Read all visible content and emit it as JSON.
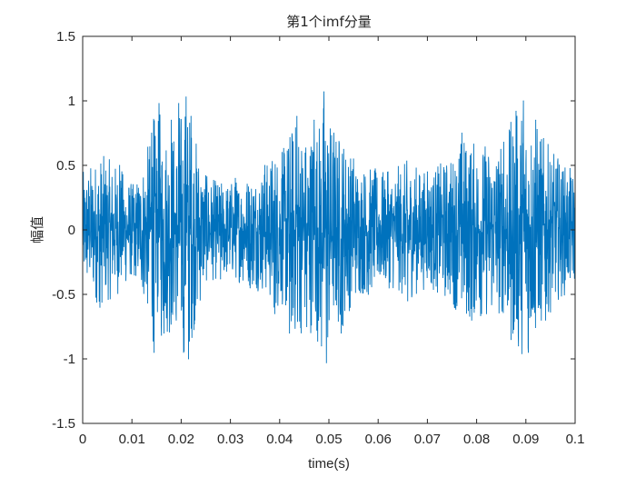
{
  "chart_data": {
    "type": "line",
    "title": "第1个imf分量",
    "xlabel": "time(s)",
    "ylabel": "幅值",
    "xlim": [
      0,
      0.1
    ],
    "ylim": [
      -1.5,
      1.5
    ],
    "xticks": [
      0,
      0.01,
      0.02,
      0.03,
      0.04,
      0.05,
      0.06,
      0.07,
      0.08,
      0.09,
      0.1
    ],
    "xtick_labels": [
      "0",
      "0.01",
      "0.02",
      "0.03",
      "0.04",
      "0.05",
      "0.06",
      "0.07",
      "0.08",
      "0.09",
      "0.1"
    ],
    "yticks": [
      1.5,
      1,
      0.5,
      0,
      -0.5,
      -1,
      -1.5
    ],
    "ytick_labels": [
      "1.5",
      "1",
      "0.5",
      "0",
      "-0.5",
      "-1",
      "-1.5"
    ],
    "grid": false,
    "box": true,
    "line_color": "#0072BD",
    "series": [
      {
        "x": [
          0,
          0.0035,
          0.0075,
          0.0105,
          0.014,
          0.0145,
          0.015,
          0.0155,
          0.0165,
          0.018,
          0.019,
          0.0195,
          0.0205,
          0.021,
          0.0215,
          0.022,
          0.025,
          0.028,
          0.031,
          0.034,
          0.037,
          0.039,
          0.0405,
          0.042,
          0.0435,
          0.0455,
          0.047,
          0.0485,
          0.049,
          0.0495,
          0.051,
          0.0525,
          0.055,
          0.058,
          0.062,
          0.066,
          0.07,
          0.0755,
          0.077,
          0.079,
          0.0855,
          0.087,
          0.088,
          0.0885,
          0.0895,
          0.0905,
          0.092,
          0.094,
          0.0965,
          0.1
        ],
        "y": [
          0.45,
          -0.6,
          0.5,
          -0.35,
          0.75,
          -0.95,
          0.55,
          0.98,
          -0.8,
          0.85,
          -0.7,
          0.98,
          -0.95,
          1.03,
          -1.0,
          0.88,
          0.42,
          -0.38,
          0.4,
          -0.45,
          0.5,
          -0.65,
          0.6,
          -0.8,
          0.88,
          -0.75,
          0.85,
          -0.9,
          1.07,
          -1.03,
          0.75,
          -0.8,
          0.55,
          -0.5,
          0.45,
          -0.55,
          0.45,
          -0.6,
          0.75,
          -0.7,
          0.68,
          -0.85,
          0.92,
          -0.9,
          1.0,
          -0.95,
          0.85,
          -0.7,
          0.55,
          -0.45
        ]
      }
    ]
  }
}
